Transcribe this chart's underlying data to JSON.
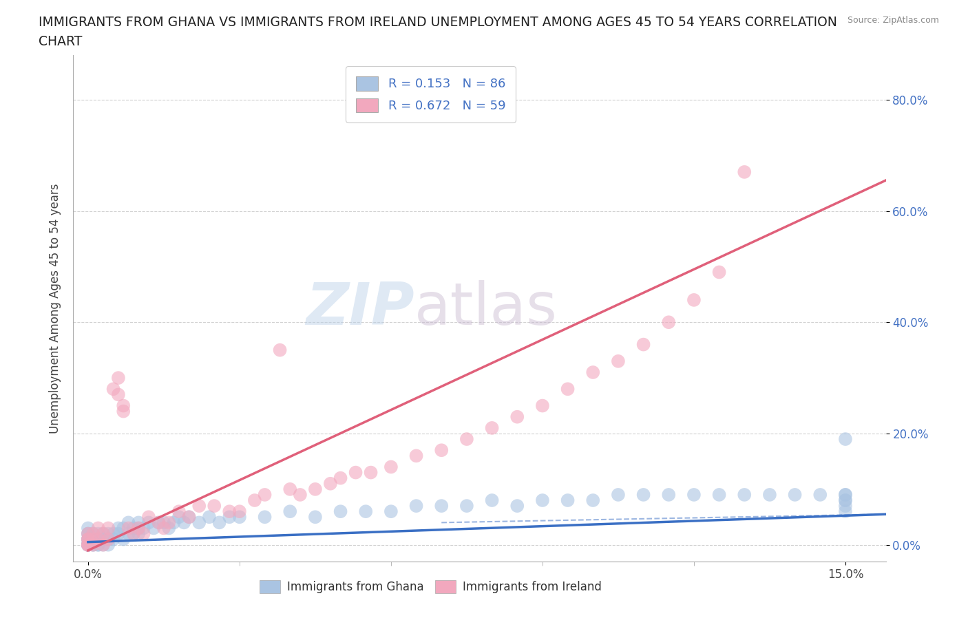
{
  "title_line1": "IMMIGRANTS FROM GHANA VS IMMIGRANTS FROM IRELAND UNEMPLOYMENT AMONG AGES 45 TO 54 YEARS CORRELATION",
  "title_line2": "CHART",
  "source": "Source: ZipAtlas.com",
  "ylabel_label": "Unemployment Among Ages 45 to 54 years",
  "x_ticks": [
    0.0,
    0.15
  ],
  "x_tick_labels": [
    "0.0%",
    "15.0%"
  ],
  "y_ticks": [
    0.0,
    0.2,
    0.4,
    0.6,
    0.8
  ],
  "y_tick_labels": [
    "0.0%",
    "20.0%",
    "40.0%",
    "60.0%",
    "80.0%"
  ],
  "xlim": [
    -0.003,
    0.158
  ],
  "ylim": [
    -0.03,
    0.88
  ],
  "ghana_color": "#aac4e2",
  "ireland_color": "#f2a8be",
  "ghana_line_color": "#3a6fc4",
  "ireland_line_color": "#e0607a",
  "ghana_R": 0.153,
  "ghana_N": 86,
  "ireland_R": 0.672,
  "ireland_N": 59,
  "ghana_label": "Immigrants from Ghana",
  "ireland_label": "Immigrants from Ireland",
  "watermark_part1": "ZIP",
  "watermark_part2": "atlas",
  "background_color": "#ffffff",
  "grid_color": "#cccccc",
  "ghana_trend_x": [
    0.0,
    0.158
  ],
  "ghana_trend_y": [
    0.005,
    0.055
  ],
  "ireland_trend_x": [
    0.0,
    0.158
  ],
  "ireland_trend_y": [
    -0.01,
    0.655
  ],
  "ghana_scatter_x": [
    0.0,
    0.0,
    0.0,
    0.0,
    0.0,
    0.0,
    0.0,
    0.0,
    0.0,
    0.0,
    0.0,
    0.0,
    0.001,
    0.001,
    0.001,
    0.001,
    0.001,
    0.002,
    0.002,
    0.002,
    0.002,
    0.003,
    0.003,
    0.003,
    0.004,
    0.004,
    0.004,
    0.005,
    0.005,
    0.006,
    0.006,
    0.007,
    0.007,
    0.008,
    0.008,
    0.009,
    0.009,
    0.01,
    0.01,
    0.01,
    0.011,
    0.012,
    0.013,
    0.014,
    0.015,
    0.016,
    0.017,
    0.018,
    0.019,
    0.02,
    0.022,
    0.024,
    0.026,
    0.028,
    0.03,
    0.035,
    0.04,
    0.045,
    0.05,
    0.055,
    0.06,
    0.065,
    0.07,
    0.075,
    0.08,
    0.085,
    0.09,
    0.095,
    0.1,
    0.105,
    0.11,
    0.115,
    0.12,
    0.125,
    0.13,
    0.135,
    0.14,
    0.145,
    0.15,
    0.15,
    0.15,
    0.15,
    0.15,
    0.15,
    0.15
  ],
  "ghana_scatter_y": [
    0.0,
    0.0,
    0.0,
    0.01,
    0.01,
    0.02,
    0.02,
    0.03,
    0.0,
    0.01,
    0.0,
    0.0,
    0.0,
    0.01,
    0.02,
    0.0,
    0.01,
    0.0,
    0.01,
    0.0,
    0.02,
    0.01,
    0.0,
    0.02,
    0.01,
    0.02,
    0.0,
    0.01,
    0.02,
    0.02,
    0.03,
    0.01,
    0.03,
    0.02,
    0.04,
    0.02,
    0.03,
    0.02,
    0.03,
    0.04,
    0.03,
    0.04,
    0.03,
    0.04,
    0.04,
    0.03,
    0.04,
    0.05,
    0.04,
    0.05,
    0.04,
    0.05,
    0.04,
    0.05,
    0.05,
    0.05,
    0.06,
    0.05,
    0.06,
    0.06,
    0.06,
    0.07,
    0.07,
    0.07,
    0.08,
    0.07,
    0.08,
    0.08,
    0.08,
    0.09,
    0.09,
    0.09,
    0.09,
    0.09,
    0.09,
    0.09,
    0.09,
    0.09,
    0.19,
    0.09,
    0.08,
    0.09,
    0.07,
    0.08,
    0.06
  ],
  "ireland_scatter_x": [
    0.0,
    0.0,
    0.0,
    0.0,
    0.0,
    0.0,
    0.001,
    0.001,
    0.001,
    0.002,
    0.002,
    0.003,
    0.003,
    0.004,
    0.004,
    0.005,
    0.006,
    0.006,
    0.007,
    0.007,
    0.008,
    0.009,
    0.01,
    0.011,
    0.012,
    0.014,
    0.015,
    0.016,
    0.018,
    0.02,
    0.022,
    0.025,
    0.028,
    0.03,
    0.033,
    0.035,
    0.038,
    0.04,
    0.042,
    0.045,
    0.048,
    0.05,
    0.053,
    0.056,
    0.06,
    0.065,
    0.07,
    0.075,
    0.08,
    0.085,
    0.09,
    0.095,
    0.1,
    0.105,
    0.11,
    0.115,
    0.12,
    0.125,
    0.13
  ],
  "ireland_scatter_y": [
    0.0,
    0.01,
    0.0,
    0.02,
    0.01,
    0.0,
    0.0,
    0.01,
    0.02,
    0.01,
    0.03,
    0.0,
    0.02,
    0.01,
    0.03,
    0.28,
    0.27,
    0.3,
    0.25,
    0.24,
    0.03,
    0.02,
    0.03,
    0.02,
    0.05,
    0.04,
    0.03,
    0.04,
    0.06,
    0.05,
    0.07,
    0.07,
    0.06,
    0.06,
    0.08,
    0.09,
    0.35,
    0.1,
    0.09,
    0.1,
    0.11,
    0.12,
    0.13,
    0.13,
    0.14,
    0.16,
    0.17,
    0.19,
    0.21,
    0.23,
    0.25,
    0.28,
    0.31,
    0.33,
    0.36,
    0.4,
    0.44,
    0.49,
    0.67
  ]
}
